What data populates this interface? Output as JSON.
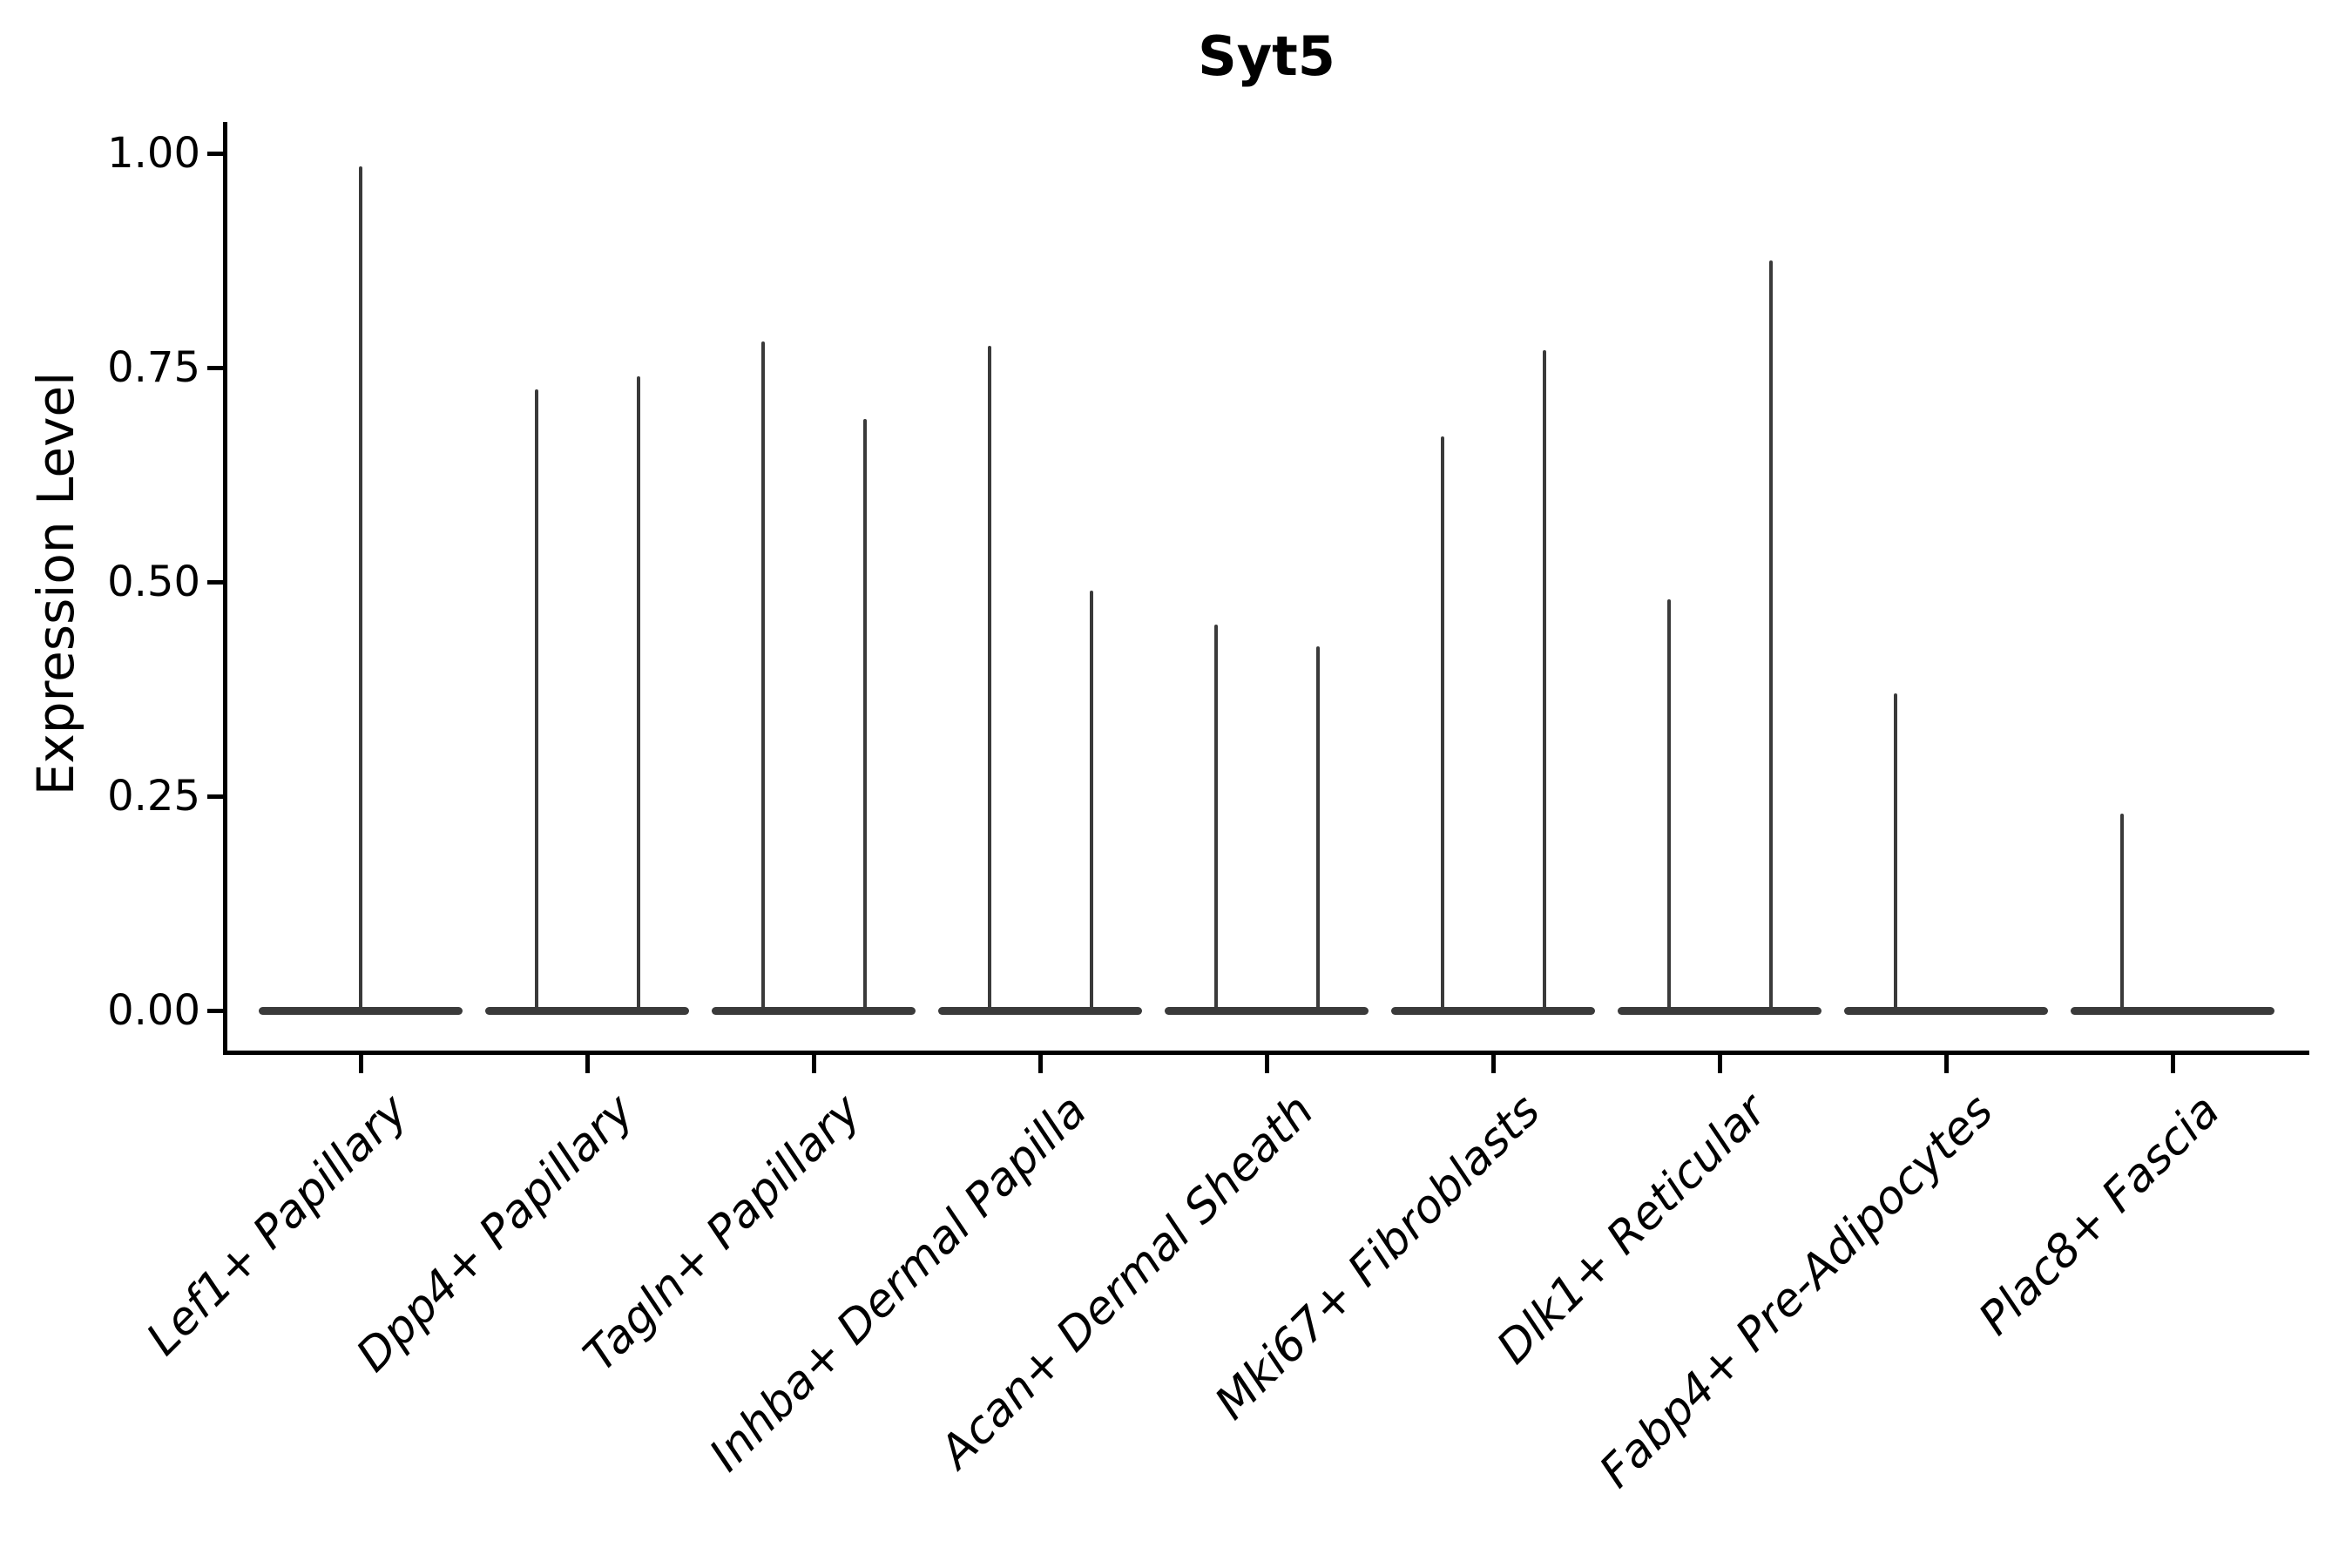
{
  "title": "Syt5",
  "colors": {
    "violin": "#3a3a3a",
    "axis": "#000000",
    "text": "#000000",
    "background": "#ffffff"
  },
  "chart_data": {
    "type": "violin",
    "title": "Syt5",
    "xlabel": "",
    "ylabel": "Expression Level",
    "ylim": [
      0,
      1.0
    ],
    "grid": false,
    "legend": "none",
    "yticks": [
      {
        "value": 1.0,
        "label": "1.00"
      },
      {
        "value": 0.75,
        "label": "0.75"
      },
      {
        "value": 0.5,
        "label": "0.50"
      },
      {
        "value": 0.25,
        "label": "0.25"
      },
      {
        "value": 0.0,
        "label": "0.00"
      }
    ],
    "violin_halfwidth_units": 0.45,
    "needle_offset_units": 0.225,
    "categories": [
      {
        "label": "Lef1+ Papillary",
        "needles": [
          {
            "pos": "center",
            "value": 0.985
          }
        ]
      },
      {
        "label": "Dpp4+ Papillary",
        "needles": [
          {
            "pos": "left",
            "value": 0.725
          },
          {
            "pos": "right",
            "value": 0.74
          }
        ]
      },
      {
        "label": "Tagln+ Papillary",
        "needles": [
          {
            "pos": "left",
            "value": 0.78
          },
          {
            "pos": "right",
            "value": 0.69
          }
        ]
      },
      {
        "label": "Inhba+ Dermal Papilla",
        "needles": [
          {
            "pos": "left",
            "value": 0.775
          },
          {
            "pos": "right",
            "value": 0.49
          }
        ]
      },
      {
        "label": "Acan+ Dermal Sheath",
        "needles": [
          {
            "pos": "left",
            "value": 0.45
          },
          {
            "pos": "right",
            "value": 0.425
          }
        ]
      },
      {
        "label": "Mki67+ Fibroblasts",
        "needles": [
          {
            "pos": "left",
            "value": 0.67
          },
          {
            "pos": "right",
            "value": 0.77
          }
        ]
      },
      {
        "label": "Dlk1+ Reticular",
        "needles": [
          {
            "pos": "left",
            "value": 0.48
          },
          {
            "pos": "right",
            "value": 0.875
          }
        ]
      },
      {
        "label": "Fabp4+ Pre-Adipocytes",
        "needles": [
          {
            "pos": "left",
            "value": 0.37
          }
        ]
      },
      {
        "label": "Plac8+ Fascia",
        "needles": [
          {
            "pos": "left",
            "value": 0.23
          }
        ]
      }
    ]
  }
}
